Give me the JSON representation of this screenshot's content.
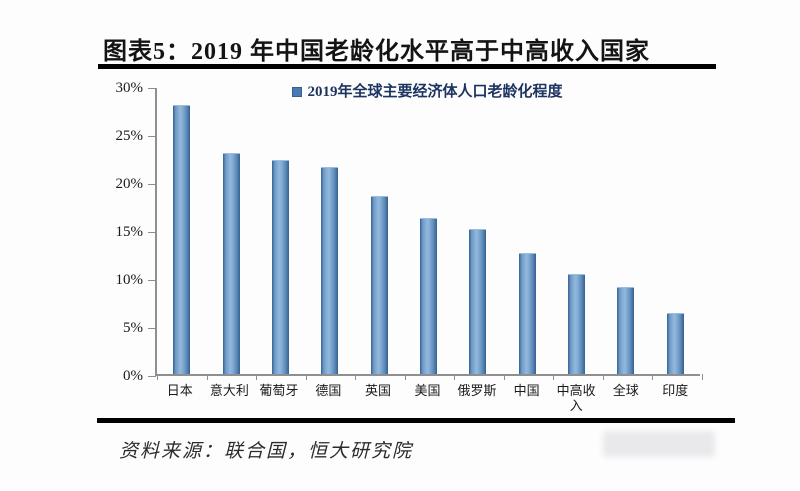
{
  "figure": {
    "title": "图表5：2019 年中国老龄化水平高于中高收入国家",
    "source": "资料来源：联合国，恒大研究院"
  },
  "chart_data": {
    "type": "bar",
    "title": "2019年全球主要经济体人口老龄化程度",
    "legend_entries": [
      "2019年全球主要经济体人口老龄化程度"
    ],
    "legend_position": "top-center",
    "categories": [
      "日本",
      "意大利",
      "葡萄牙",
      "德国",
      "英国",
      "美国",
      "俄罗斯",
      "中国",
      "中高收入",
      "全球",
      "印度"
    ],
    "values": [
      28.0,
      23.0,
      22.3,
      21.6,
      18.5,
      16.2,
      15.1,
      12.6,
      10.4,
      9.1,
      6.4
    ],
    "unit": "%",
    "xlabel": "",
    "ylabel": "",
    "ylim": [
      0,
      30
    ],
    "ytick_step": 5,
    "ytick_labels_top_down": [
      "30%",
      "25%",
      "20%",
      "15%",
      "10%",
      "5%",
      "0%"
    ],
    "grid": false,
    "colors": {
      "bar": "#5b87b8",
      "bar_edge_dark": "#35618f",
      "bar_highlight": "#92b7dc",
      "axis": "#8f8f8f",
      "legend_text": "#1d3461",
      "title_text": "#141414",
      "rule": "#000000"
    }
  }
}
